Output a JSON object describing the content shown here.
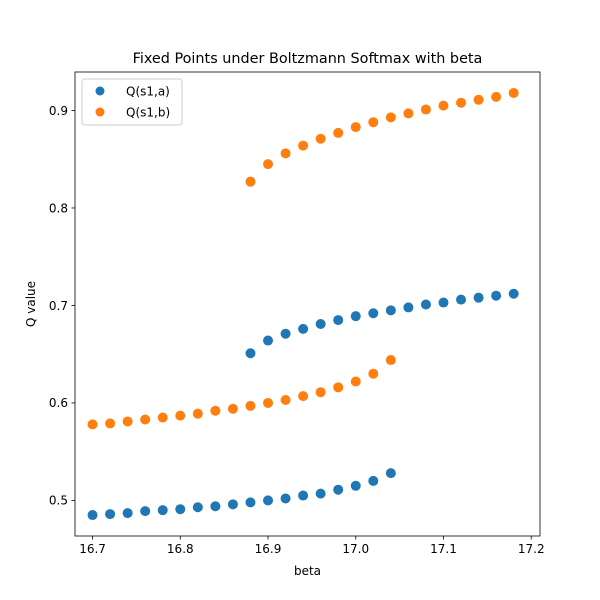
{
  "chart_data": {
    "type": "scatter",
    "title": "Fixed Points under Boltzmann Softmax with beta",
    "xlabel": "beta",
    "ylabel": "Q value",
    "xlim": [
      16.68,
      17.21
    ],
    "ylim": [
      0.4635,
      0.9395
    ],
    "xticks": [
      16.7,
      16.8,
      16.9,
      17.0,
      17.1,
      17.2
    ],
    "xtick_labels": [
      "16.7",
      "16.8",
      "16.9",
      "17.0",
      "17.1",
      "17.2"
    ],
    "yticks": [
      0.5,
      0.6,
      0.7,
      0.8,
      0.9
    ],
    "ytick_labels": [
      "0.5",
      "0.6",
      "0.7",
      "0.8",
      "0.9"
    ],
    "grid": false,
    "legend": "top-left",
    "series": [
      {
        "name": "Q(s1,a)",
        "color": "#1f77b4",
        "points": [
          [
            16.7,
            0.485
          ],
          [
            16.72,
            0.486
          ],
          [
            16.74,
            0.487
          ],
          [
            16.76,
            0.489
          ],
          [
            16.78,
            0.49
          ],
          [
            16.8,
            0.491
          ],
          [
            16.82,
            0.493
          ],
          [
            16.84,
            0.494
          ],
          [
            16.86,
            0.496
          ],
          [
            16.88,
            0.498
          ],
          [
            16.9,
            0.5
          ],
          [
            16.92,
            0.502
          ],
          [
            16.94,
            0.505
          ],
          [
            16.96,
            0.507
          ],
          [
            16.98,
            0.511
          ],
          [
            17.0,
            0.515
          ],
          [
            17.02,
            0.52
          ],
          [
            17.04,
            0.528
          ],
          [
            16.88,
            0.651
          ],
          [
            16.9,
            0.664
          ],
          [
            16.92,
            0.671
          ],
          [
            16.94,
            0.676
          ],
          [
            16.96,
            0.681
          ],
          [
            16.98,
            0.685
          ],
          [
            17.0,
            0.689
          ],
          [
            17.02,
            0.692
          ],
          [
            17.04,
            0.695
          ],
          [
            17.06,
            0.698
          ],
          [
            17.08,
            0.701
          ],
          [
            17.1,
            0.703
          ],
          [
            17.12,
            0.706
          ],
          [
            17.14,
            0.708
          ],
          [
            17.16,
            0.71
          ],
          [
            17.18,
            0.712
          ]
        ]
      },
      {
        "name": "Q(s1,b)",
        "color": "#ff7f0e",
        "points": [
          [
            16.7,
            0.578
          ],
          [
            16.72,
            0.579
          ],
          [
            16.74,
            0.581
          ],
          [
            16.76,
            0.583
          ],
          [
            16.78,
            0.585
          ],
          [
            16.8,
            0.587
          ],
          [
            16.82,
            0.589
          ],
          [
            16.84,
            0.592
          ],
          [
            16.86,
            0.594
          ],
          [
            16.88,
            0.597
          ],
          [
            16.9,
            0.6
          ],
          [
            16.92,
            0.603
          ],
          [
            16.94,
            0.607
          ],
          [
            16.96,
            0.611
          ],
          [
            16.98,
            0.616
          ],
          [
            17.0,
            0.622
          ],
          [
            17.02,
            0.63
          ],
          [
            17.04,
            0.644
          ],
          [
            16.88,
            0.827
          ],
          [
            16.9,
            0.845
          ],
          [
            16.92,
            0.856
          ],
          [
            16.94,
            0.864
          ],
          [
            16.96,
            0.871
          ],
          [
            16.98,
            0.877
          ],
          [
            17.0,
            0.883
          ],
          [
            17.02,
            0.888
          ],
          [
            17.04,
            0.893
          ],
          [
            17.06,
            0.897
          ],
          [
            17.08,
            0.901
          ],
          [
            17.1,
            0.905
          ],
          [
            17.12,
            0.908
          ],
          [
            17.14,
            0.911
          ],
          [
            17.16,
            0.914
          ],
          [
            17.18,
            0.918
          ]
        ]
      }
    ]
  }
}
